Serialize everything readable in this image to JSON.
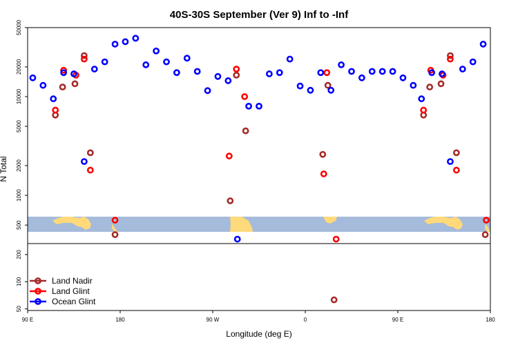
{
  "chart_data": {
    "type": "scatter",
    "title": "40S-30S September (Ver 9)   Inf to -Inf",
    "xlabel": "Longitude (deg E)",
    "ylabel": "N Total",
    "x_ticks": [
      {
        "value": 90,
        "label": "90 E"
      },
      {
        "value": 180,
        "label": "180"
      },
      {
        "value": 270,
        "label": "90 W"
      },
      {
        "value": 360,
        "label": "0"
      },
      {
        "value": 450,
        "label": "90 E"
      },
      {
        "value": 540,
        "label": "180"
      }
    ],
    "xlim": [
      90,
      540
    ],
    "y_upper_ticks": [
      {
        "value": 500,
        "label": "500"
      },
      {
        "value": 1000,
        "label": "1000"
      },
      {
        "value": 2000,
        "label": "2000"
      },
      {
        "value": 5000,
        "label": "5000"
      },
      {
        "value": 10000,
        "label": "10000"
      },
      {
        "value": 20000,
        "label": "20000"
      },
      {
        "value": 50000,
        "label": "50000"
      }
    ],
    "y_lower_ticks": [
      {
        "value": 50,
        "label": "50"
      },
      {
        "value": 100,
        "label": "100"
      },
      {
        "value": 200,
        "label": "200"
      }
    ],
    "y_scale": "log",
    "ylim_upper": [
      330,
      50000
    ],
    "ylim_lower": [
      48,
      260
    ],
    "series": [
      {
        "name": "Land Nadir",
        "color": "#a52a2a",
        "points": [
          {
            "x": 117,
            "y": 6500
          },
          {
            "x": 124,
            "y": 12500
          },
          {
            "x": 136,
            "y": 13500
          },
          {
            "x": 145,
            "y": 26000
          },
          {
            "x": 151,
            "y": 2700
          },
          {
            "x": 175,
            "y": 400
          },
          {
            "x": 287,
            "y": 880
          },
          {
            "x": 293,
            "y": 16500
          },
          {
            "x": 302,
            "y": 4500
          },
          {
            "x": 377,
            "y": 2600
          },
          {
            "x": 382,
            "y": 13000
          },
          {
            "x": 388,
            "y": 63
          },
          {
            "x": 475,
            "y": 6500
          },
          {
            "x": 481,
            "y": 12500
          },
          {
            "x": 492,
            "y": 13500
          },
          {
            "x": 501,
            "y": 26000
          },
          {
            "x": 507,
            "y": 2700
          },
          {
            "x": 535,
            "y": 400
          }
        ]
      },
      {
        "name": "Land Glint",
        "color": "#ff0000",
        "points": [
          {
            "x": 117,
            "y": 7300
          },
          {
            "x": 125,
            "y": 18500
          },
          {
            "x": 137,
            "y": 16500
          },
          {
            "x": 145,
            "y": 24000
          },
          {
            "x": 151,
            "y": 1800
          },
          {
            "x": 175,
            "y": 560
          },
          {
            "x": 286,
            "y": 2500
          },
          {
            "x": 293,
            "y": 19000
          },
          {
            "x": 301,
            "y": 10000
          },
          {
            "x": 378,
            "y": 1650
          },
          {
            "x": 381,
            "y": 17500
          },
          {
            "x": 390,
            "y": 360
          },
          {
            "x": 475,
            "y": 7300
          },
          {
            "x": 482,
            "y": 18500
          },
          {
            "x": 494,
            "y": 16500
          },
          {
            "x": 501,
            "y": 24000
          },
          {
            "x": 507,
            "y": 1800
          },
          {
            "x": 536,
            "y": 560
          }
        ]
      },
      {
        "name": "Ocean Glint",
        "color": "#0000ff",
        "points": [
          {
            "x": 95,
            "y": 15500
          },
          {
            "x": 105,
            "y": 13000
          },
          {
            "x": 115,
            "y": 9500
          },
          {
            "x": 125,
            "y": 17500
          },
          {
            "x": 135,
            "y": 17000
          },
          {
            "x": 145,
            "y": 2200
          },
          {
            "x": 155,
            "y": 19000
          },
          {
            "x": 165,
            "y": 22500
          },
          {
            "x": 175,
            "y": 34000
          },
          {
            "x": 185,
            "y": 36000
          },
          {
            "x": 195,
            "y": 39000
          },
          {
            "x": 205,
            "y": 21000
          },
          {
            "x": 215,
            "y": 29000
          },
          {
            "x": 225,
            "y": 22500
          },
          {
            "x": 235,
            "y": 17500
          },
          {
            "x": 245,
            "y": 24500
          },
          {
            "x": 255,
            "y": 18000
          },
          {
            "x": 265,
            "y": 11500
          },
          {
            "x": 275,
            "y": 16000
          },
          {
            "x": 285,
            "y": 14500
          },
          {
            "x": 294,
            "y": 360
          },
          {
            "x": 305,
            "y": 8000
          },
          {
            "x": 315,
            "y": 8000
          },
          {
            "x": 325,
            "y": 17000
          },
          {
            "x": 335,
            "y": 17500
          },
          {
            "x": 345,
            "y": 24000
          },
          {
            "x": 355,
            "y": 12800
          },
          {
            "x": 365,
            "y": 11600
          },
          {
            "x": 375,
            "y": 17500
          },
          {
            "x": 385,
            "y": 11600
          },
          {
            "x": 395,
            "y": 21000
          },
          {
            "x": 405,
            "y": 18000
          },
          {
            "x": 415,
            "y": 15500
          },
          {
            "x": 425,
            "y": 18000
          },
          {
            "x": 435,
            "y": 18000
          },
          {
            "x": 445,
            "y": 18000
          },
          {
            "x": 455,
            "y": 15500
          },
          {
            "x": 465,
            "y": 13000
          },
          {
            "x": 473,
            "y": 9500
          },
          {
            "x": 483,
            "y": 17500
          },
          {
            "x": 493,
            "y": 17000
          },
          {
            "x": 501,
            "y": 2200
          },
          {
            "x": 513,
            "y": 19000
          },
          {
            "x": 523,
            "y": 22500
          },
          {
            "x": 533,
            "y": 34000
          }
        ]
      }
    ],
    "legend_position": "bottom-left",
    "grid": false
  }
}
